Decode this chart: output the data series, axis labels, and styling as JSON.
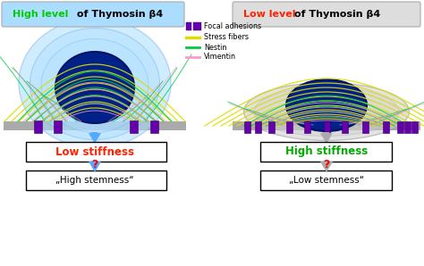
{
  "title_left_colored": "High level",
  "title_left_rest": " of Thymosin β4",
  "title_right_colored": "Low level",
  "title_right_rest": " of Thymosin β4",
  "title_left_color": "#00cc00",
  "title_right_color": "#ff2200",
  "title_box_left_bg": "#aaddff",
  "title_box_right_bg": "#dddddd",
  "stiffness_left": "Low stiffness",
  "stiffness_right": "High stiffness",
  "stiffness_left_color": "#ff2200",
  "stiffness_right_color": "#00aa00",
  "stemness_left": "„High stemness“",
  "stemness_right": "„Low stemness“",
  "arrow_left_color": "#55aaff",
  "arrow_right_color": "#aaaaaa",
  "legend_items": [
    {
      "label": "Focal adhesions",
      "color": "#6600aa",
      "type": "rect"
    },
    {
      "label": "Stress fibers",
      "color": "#dddd00",
      "type": "line"
    },
    {
      "label": "Nestin",
      "color": "#00cc44",
      "type": "line"
    },
    {
      "label": "Vimentin",
      "color": "#ff99cc",
      "type": "line"
    }
  ],
  "bg_color": "#ffffff",
  "cell_left_body_color": "#aaddff",
  "cell_left_nucleus_color": "#002288",
  "cell_right_body_color": "#cccccc",
  "cell_right_nucleus_color": "#002288",
  "ground_color": "#aaaaaa",
  "fa_color": "#6600aa"
}
